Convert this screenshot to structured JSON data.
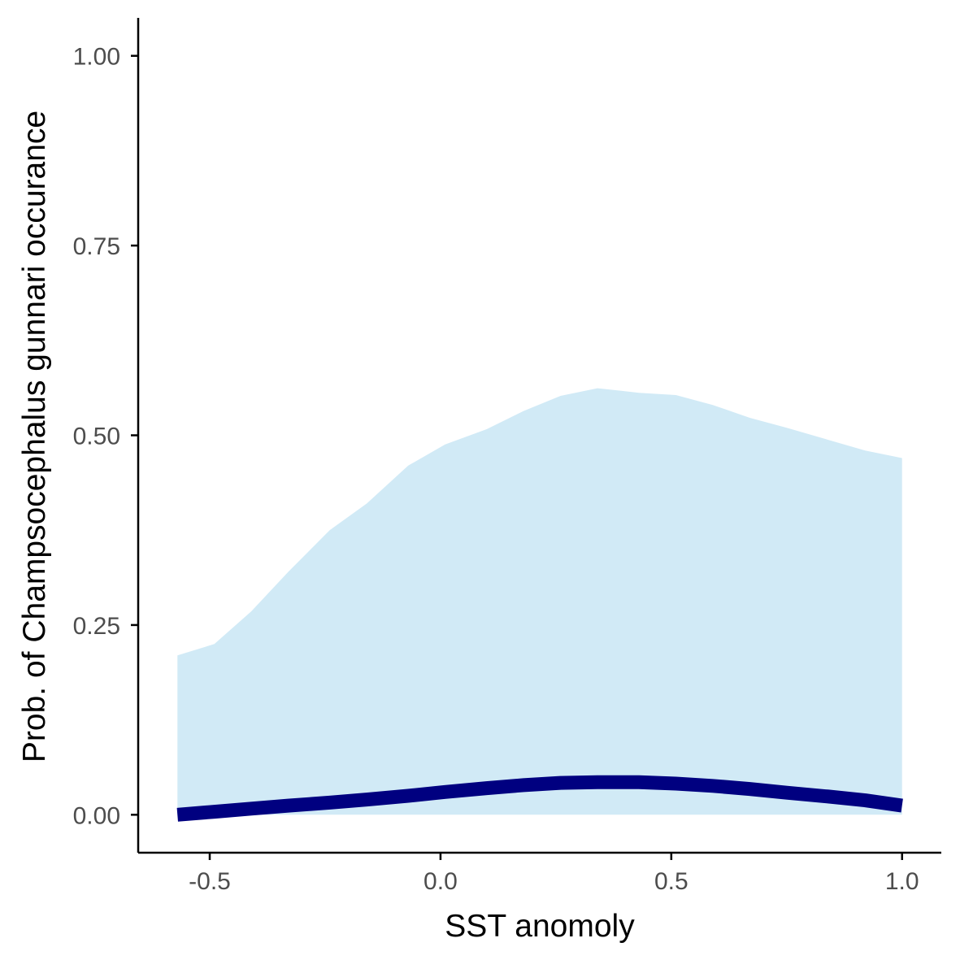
{
  "chart_data": {
    "type": "area",
    "title": "",
    "xlabel": "SST anomoly",
    "ylabel": "Prob. of  Champsocephalus gunnari  occurance",
    "xlim": [
      -0.655,
      1.085
    ],
    "ylim": [
      -0.05,
      1.05
    ],
    "x_ticks": [
      -0.5,
      0.0,
      0.5,
      1.0
    ],
    "x_tick_labels": [
      "-0.5",
      "0.0",
      "0.5",
      "1.0"
    ],
    "y_ticks": [
      0.0,
      0.25,
      0.5,
      0.75,
      1.0
    ],
    "y_tick_labels": [
      "0.00",
      "0.25",
      "0.50",
      "0.75",
      "1.00"
    ],
    "grid": false,
    "legend": "none",
    "x": [
      -0.57,
      -0.49,
      -0.41,
      -0.33,
      -0.24,
      -0.16,
      -0.07,
      0.01,
      0.1,
      0.18,
      0.26,
      0.34,
      0.43,
      0.51,
      0.59,
      0.67,
      0.75,
      0.84,
      0.92,
      1.0
    ],
    "series": [
      {
        "role": "mean",
        "values": [
          0.0,
          0.004,
          0.008,
          0.012,
          0.016,
          0.02,
          0.025,
          0.03,
          0.035,
          0.039,
          0.042,
          0.043,
          0.043,
          0.041,
          0.038,
          0.034,
          0.029,
          0.024,
          0.019,
          0.012
        ]
      },
      {
        "role": "upper-ci",
        "values": [
          0.21,
          0.225,
          0.268,
          0.32,
          0.375,
          0.41,
          0.46,
          0.488,
          0.508,
          0.532,
          0.552,
          0.562,
          0.556,
          0.553,
          0.54,
          0.523,
          0.51,
          0.494,
          0.48,
          0.47
        ]
      },
      {
        "role": "lower-ci",
        "values": [
          0.0,
          0.0,
          0.0,
          0.0,
          0.0,
          0.0,
          0.0,
          0.0,
          0.0,
          0.0,
          0.0,
          0.0,
          0.0,
          0.0,
          0.0,
          0.0,
          0.0,
          0.0,
          0.0,
          0.0
        ]
      }
    ],
    "colors": {
      "ribbon": "#d1eaf6",
      "line": "#000080",
      "axis": "#000000",
      "tick_text": "#4d4d4d"
    }
  }
}
